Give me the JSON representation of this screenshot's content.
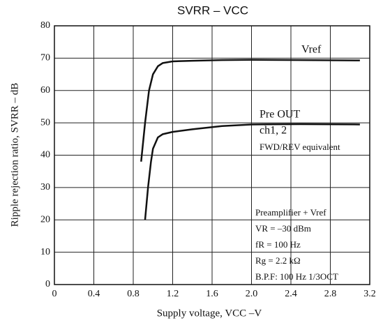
{
  "chart_data": {
    "type": "line",
    "title": "SVRR – VCC",
    "x_label": "Supply voltage, VCC –V",
    "y_label": "Ripple rejection ratio, SVRR – dB",
    "xlim": [
      0,
      3.2
    ],
    "xticks": [
      0,
      0.4,
      0.8,
      1.2,
      1.6,
      {
        "value": 2,
        "label": "2.0"
      },
      2.4,
      2.8,
      3.2
    ],
    "ylim": [
      0,
      80
    ],
    "yticks": [
      0,
      10,
      20,
      30,
      40,
      50,
      60,
      70,
      80
    ],
    "grid": true,
    "series": [
      {
        "name": "Vref",
        "color": "#111111",
        "x": [
          0.88,
          0.92,
          0.96,
          1.0,
          1.05,
          1.1,
          1.2,
          1.4,
          1.7,
          2.0,
          2.5,
          3.1
        ],
        "values": [
          38,
          50,
          60,
          65,
          67.5,
          68.5,
          69,
          69.2,
          69.4,
          69.5,
          69.4,
          69.3
        ]
      },
      {
        "name": "Pre OUT",
        "color": "#111111",
        "x": [
          0.92,
          0.95,
          0.98,
          1.0,
          1.05,
          1.1,
          1.2,
          1.4,
          1.7,
          2.0,
          2.5,
          3.1
        ],
        "values": [
          20,
          30,
          38,
          42,
          45.5,
          46.5,
          47.2,
          48,
          49,
          49.5,
          49.6,
          49.5
        ]
      }
    ],
    "annotations": [
      "ch1, 2",
      "FWD/REV equivalent",
      "Preamplifier + Vref",
      "VR = –30 dBm",
      "fR = 100 Hz",
      "Rg = 2.2 kΩ",
      "B.P.F: 100 Hz 1/3OCT"
    ]
  }
}
